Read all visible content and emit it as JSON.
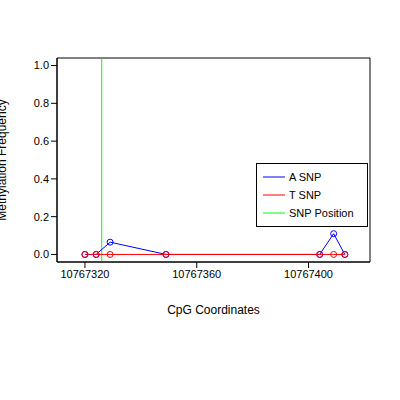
{
  "chart_data": {
    "type": "line",
    "x_label": "CpG Coordinates",
    "y_label": "Methylation Frequency",
    "x": [
      10767320,
      10767324,
      10767329,
      10767349,
      10767404,
      10767409,
      10767413
    ],
    "series": [
      {
        "name": "A SNP",
        "color": "#0000FF",
        "marker": "circle",
        "values": [
          0,
          0,
          0.065,
          0,
          0,
          0.11,
          0
        ]
      },
      {
        "name": "T SNP",
        "color": "#FF0000",
        "marker": "circle",
        "values": [
          0,
          0,
          0,
          0,
          0,
          0,
          0
        ]
      }
    ],
    "vertical_line": {
      "name": "SNP Position",
      "x": 10767326,
      "color": "#00FF00"
    },
    "xlim": [
      10767310,
      10767422
    ],
    "xticks": [
      10767320,
      10767360,
      10767400
    ],
    "ylim": [
      -0.04,
      1.04
    ],
    "yticks": [
      {
        "value": 0,
        "label": "0.0"
      },
      0.2,
      0.4,
      0.6,
      0.8,
      {
        "value": 1,
        "label": "1.0"
      }
    ],
    "legend": "right",
    "grid": false
  }
}
